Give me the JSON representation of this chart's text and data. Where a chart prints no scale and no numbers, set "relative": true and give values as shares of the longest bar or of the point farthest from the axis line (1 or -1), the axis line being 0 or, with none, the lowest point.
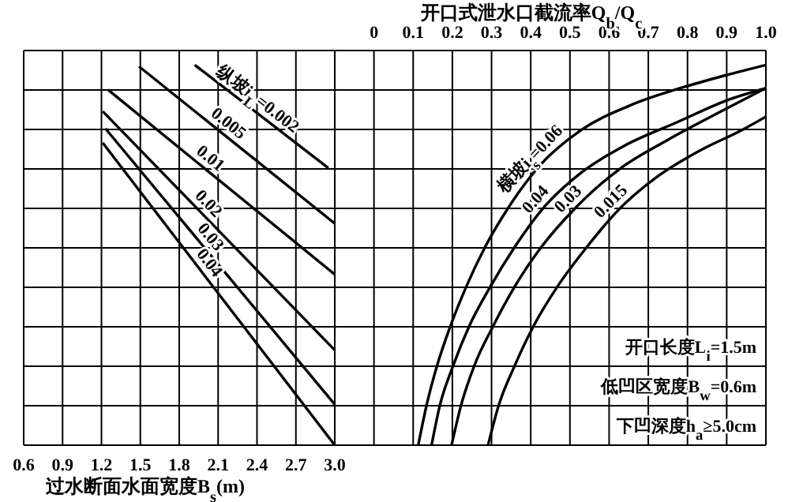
{
  "chart_data": [
    {
      "type": "line",
      "xlabel": "过水断面水面宽度B$_{s}$(m)",
      "xlim": [
        0.6,
        3.0
      ],
      "xticks": [
        0.6,
        0.9,
        1.2,
        1.5,
        1.8,
        2.1,
        2.4,
        2.7,
        {
          "value": 3.0,
          "label": "3.0"
        }
      ],
      "relative": true,
      "grid": true,
      "tick_labels": "x",
      "series": [
        {
          "name": "纵坡i$_{L}$=0.002",
          "color": "#000000",
          "x": [
            1.92,
            2.95
          ],
          "values": [
            1.0,
            0.729
          ]
        },
        {
          "name": "0.005",
          "color": "#000000",
          "x": [
            1.49,
            3.0
          ],
          "values": [
            0.996,
            0.583
          ]
        },
        {
          "name": "0.01",
          "color": "#000000",
          "x": [
            1.25,
            3.0
          ],
          "values": [
            0.935,
            0.449
          ]
        },
        {
          "name": "0.02",
          "color": "#000000",
          "x": [
            1.21,
            3.0
          ],
          "values": [
            0.878,
            0.25
          ]
        },
        {
          "name": "0.03",
          "color": "#000000",
          "x": [
            1.23,
            3.0
          ],
          "values": [
            0.833,
            0.107
          ]
        },
        {
          "name": "0.04",
          "color": "#000000",
          "x": [
            1.21,
            3.0
          ],
          "values": [
            0.795,
            0.0
          ]
        }
      ]
    },
    {
      "type": "line",
      "xlabel": "开口式泄水口截流率Q$_{b}$/Q$_{c}$",
      "xlim": [
        -0.1,
        1.0
      ],
      "xticks": [
        0,
        0.1,
        0.2,
        0.3,
        0.4,
        0.5,
        0.6,
        0.7,
        0.8,
        0.9,
        {
          "value": 1.0,
          "label": "1.0"
        }
      ],
      "relative": true,
      "grid": true,
      "tick_labels": "x",
      "annotations": [
        "开口长度L$_{i}$=1.5m",
        "低凹区宽度B$_{w}$=0.6m",
        "下凹深度h$_{a}$≥5.0cm"
      ],
      "series": [
        {
          "name": "横坡i$_{s}$=0.06",
          "color": "#000000",
          "x": [
            0.113,
            0.134,
            0.161,
            0.195,
            0.236,
            0.284,
            0.345,
            0.42,
            0.529,
            0.652,
            0.788,
            0.898,
            1.0
          ],
          "values": [
            0,
            0.104,
            0.209,
            0.313,
            0.418,
            0.522,
            0.628,
            0.732,
            0.829,
            0.893,
            0.941,
            0.973,
            1.0
          ]
        },
        {
          "name": "0.04",
          "color": "#000000",
          "x": [
            0.147,
            0.168,
            0.202,
            0.243,
            0.297,
            0.359,
            0.434,
            0.529,
            0.638,
            0.775,
            0.898,
            1.0
          ],
          "values": [
            0,
            0.104,
            0.209,
            0.313,
            0.417,
            0.521,
            0.626,
            0.717,
            0.787,
            0.85,
            0.906,
            0.939
          ]
        },
        {
          "name": "0.03",
          "color": "#000000",
          "x": [
            0.198,
            0.222,
            0.256,
            0.304,
            0.359,
            0.427,
            0.516,
            0.625,
            0.748,
            0.884,
            1.0
          ],
          "values": [
            0,
            0.104,
            0.209,
            0.313,
            0.417,
            0.521,
            0.626,
            0.725,
            0.802,
            0.877,
            0.939
          ]
        },
        {
          "name": "0.015",
          "color": "#000000",
          "x": [
            0.291,
            0.318,
            0.359,
            0.407,
            0.468,
            0.543,
            0.625,
            0.72,
            0.83,
            0.939,
            1.0
          ],
          "values": [
            0,
            0.104,
            0.209,
            0.313,
            0.417,
            0.521,
            0.62,
            0.704,
            0.774,
            0.829,
            0.864
          ]
        }
      ]
    }
  ]
}
